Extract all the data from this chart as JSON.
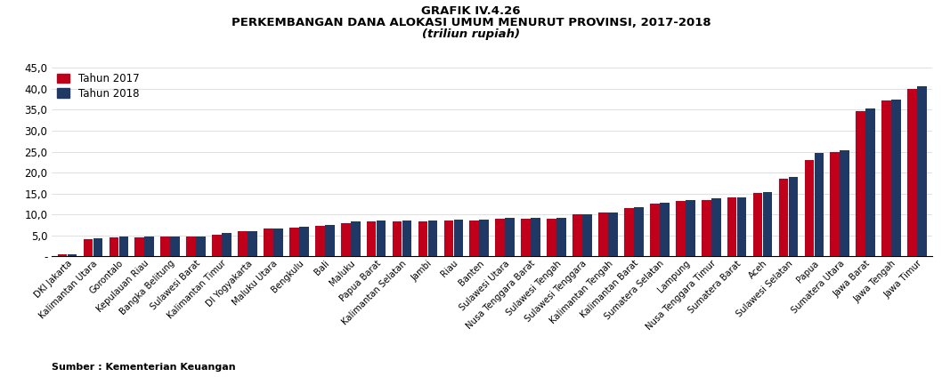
{
  "title_line1": "GRAFIK IV.4.26",
  "title_line2": "PERKEMBANGAN DANA ALOKASI UMUM MENURUT PROVINSI, 2017-2018",
  "title_line3": "(triliun rupiah)",
  "legend_2017": "Tahun 2017",
  "legend_2018": "Tahun 2018",
  "color_2017": "#C0001A",
  "color_2018": "#1F3864",
  "source": "Sumber : Kementerian Keuangan",
  "ylim": [
    0,
    45
  ],
  "yticks": [
    0,
    5.0,
    10.0,
    15.0,
    20.0,
    25.0,
    30.0,
    35.0,
    40.0,
    45.0
  ],
  "ytick_labels": [
    "-",
    "5,0",
    "10,0",
    "15,0",
    "20,0",
    "25,0",
    "30,0",
    "35,0",
    "40,0",
    "45,0"
  ],
  "categories": [
    "DKI Jakarta",
    "Kalimantan Utara",
    "Gorontalo",
    "Kepulauan Riau",
    "Bangka Belitung",
    "Sulawesi Barat",
    "Kalimantan Timur",
    "DI Yogyakarta",
    "Maluku Utara",
    "Bengkulu",
    "Bali",
    "Maluku",
    "Papua Barat",
    "Kalimantan Selatan",
    "Jambi",
    "Riau",
    "Banten",
    "Sulawesi Utara",
    "Nusa Tenggara Barat",
    "Sulawesi Tengah",
    "Sulawesi Tenggara",
    "Kalimantan Tengah",
    "Kalimantan Barat",
    "Sumatera Selatan",
    "Lampung",
    "Nusa Tenggara Timur",
    "Sumatera Barat",
    "Aceh",
    "Sulawesi Selatan",
    "Papua",
    "Sumatera Utara",
    "Jawa Barat",
    "Jawa Tengah",
    "Jawa Timur"
  ],
  "values_2017": [
    0.5,
    4.0,
    4.6,
    4.6,
    4.8,
    4.7,
    5.2,
    6.0,
    6.6,
    6.8,
    7.3,
    8.0,
    8.3,
    8.3,
    8.3,
    8.5,
    8.6,
    9.0,
    9.0,
    9.0,
    10.0,
    10.5,
    11.5,
    12.5,
    13.2,
    13.5,
    14.0,
    15.1,
    18.5,
    22.9,
    25.0,
    34.7,
    37.3,
    40.0
  ],
  "values_2018": [
    0.5,
    4.3,
    4.7,
    4.8,
    4.7,
    4.7,
    5.6,
    6.0,
    6.7,
    7.0,
    7.5,
    8.4,
    8.5,
    8.5,
    8.5,
    8.8,
    8.7,
    9.1,
    9.2,
    9.2,
    10.1,
    10.5,
    11.8,
    12.7,
    13.4,
    13.8,
    14.1,
    15.3,
    19.0,
    24.7,
    25.4,
    35.2,
    37.5,
    40.6
  ]
}
